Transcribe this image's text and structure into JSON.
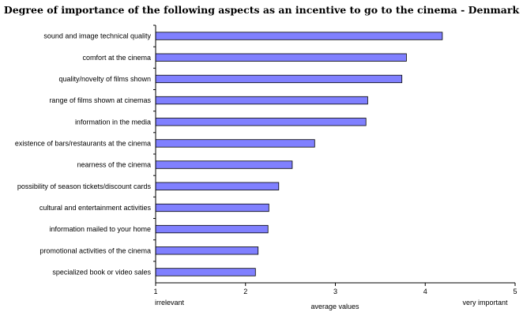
{
  "chart_data": {
    "type": "bar",
    "orientation": "horizontal",
    "title": "Degree of importance of the following aspects as an incentive to go to the cinema - Denmark",
    "xlabel": "average values",
    "x_low_label": "irrelevant",
    "x_high_label": "very important",
    "xlim": [
      1,
      5
    ],
    "xticks": [
      "1",
      "2",
      "3",
      "4",
      "5"
    ],
    "grid": false,
    "categories": [
      "sound and image technical quality",
      "comfort at the cinema",
      "quality/novelty of films shown",
      "range of films shown at cinemas",
      "information in the media",
      "existence of bars/restaurants at the cinema",
      "nearness of the cinema",
      "possibility of season tickets/discount cards",
      "cultural and entertainment activities",
      "information mailed to your home",
      "promotional activities of the cinema",
      "specialized book or video sales"
    ],
    "values": [
      4.19,
      3.79,
      3.74,
      3.36,
      3.34,
      2.77,
      2.52,
      2.37,
      2.26,
      2.25,
      2.14,
      2.11
    ],
    "colors": {
      "bar": "#8080ff",
      "bar_outline": "#000000"
    }
  }
}
